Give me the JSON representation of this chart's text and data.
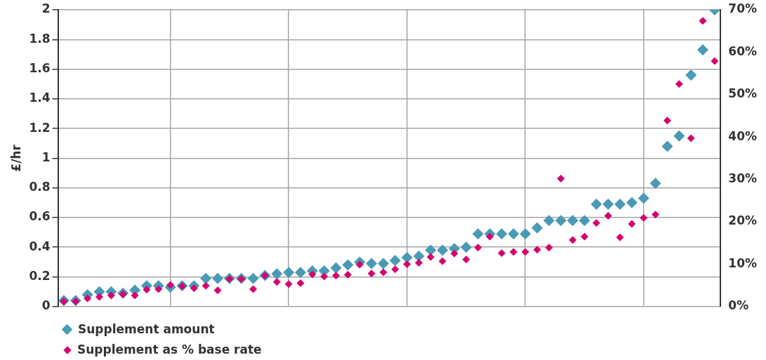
{
  "chart_data": {
    "type": "scatter",
    "ylabel": "£/hr",
    "categories": [
      null,
      null,
      null,
      null,
      null,
      null,
      null,
      null,
      null,
      null,
      null,
      null,
      null,
      null,
      null,
      null,
      null,
      null,
      null,
      null,
      null,
      null,
      null,
      null,
      null,
      null,
      null,
      null,
      null,
      null,
      null,
      null,
      null,
      null,
      null,
      null,
      null,
      null,
      null,
      null,
      null,
      null,
      null,
      null,
      null,
      null,
      null,
      null,
      null,
      null,
      null,
      null,
      null,
      null,
      null,
      null
    ],
    "series": [
      {
        "name": "Supplement amount",
        "color": "#4a9ab5",
        "values": [
          0.04,
          0.04,
          0.08,
          0.1,
          0.1,
          0.09,
          0.11,
          0.14,
          0.14,
          0.13,
          0.14,
          0.14,
          0.19,
          0.19,
          0.19,
          0.19,
          0.19,
          0.21,
          0.22,
          0.23,
          0.23,
          0.24,
          0.24,
          0.26,
          0.28,
          0.3,
          0.29,
          0.29,
          0.31,
          0.33,
          0.34,
          0.38,
          0.38,
          0.39,
          0.4,
          0.49,
          0.49,
          0.49,
          0.49,
          0.49,
          0.53,
          0.58,
          0.58,
          0.58,
          0.58,
          0.69,
          0.69,
          0.69,
          0.7,
          0.73,
          0.83,
          1.08,
          1.15,
          1.56,
          1.73,
          2.0
        ]
      },
      {
        "name": "Supplement as % base rate",
        "color": "#d6006e",
        "axis": "y2",
        "values": [
          1.2,
          1.2,
          1.9,
          2.3,
          2.6,
          2.9,
          2.6,
          4.0,
          4.1,
          5.1,
          4.8,
          4.3,
          4.9,
          3.8,
          6.5,
          6.5,
          4.1,
          7.3,
          5.8,
          5.3,
          5.5,
          7.6,
          7.1,
          7.3,
          7.5,
          9.9,
          7.8,
          8.1,
          8.8,
          10.0,
          10.3,
          11.7,
          10.7,
          12.5,
          11.1,
          13.9,
          16.5,
          12.6,
          12.9,
          12.9,
          13.4,
          13.9,
          30.2,
          15.7,
          16.5,
          19.7,
          21.4,
          16.3,
          19.5,
          20.9,
          21.7,
          43.9,
          52.5,
          39.7,
          67.4,
          57.9
        ]
      }
    ],
    "ylim": [
      0,
      2
    ],
    "yticks": [
      0,
      0.2,
      0.4,
      0.6,
      0.8,
      1,
      1.2,
      1.4,
      1.6,
      1.8,
      2
    ],
    "y2lim": [
      0,
      70
    ],
    "y2ticks": [
      {
        "value": 0,
        "label": "0%"
      },
      {
        "value": 10,
        "label": "10%"
      },
      {
        "value": 20,
        "label": "20%"
      },
      {
        "value": 30,
        "label": "30%"
      },
      {
        "value": 40,
        "label": "40%"
      },
      {
        "value": 50,
        "label": "50%"
      },
      {
        "value": 60,
        "label": "60%"
      },
      {
        "value": 70,
        "label": "70%"
      }
    ],
    "grid": true,
    "legend": "bottom left",
    "marker": "diamond"
  }
}
